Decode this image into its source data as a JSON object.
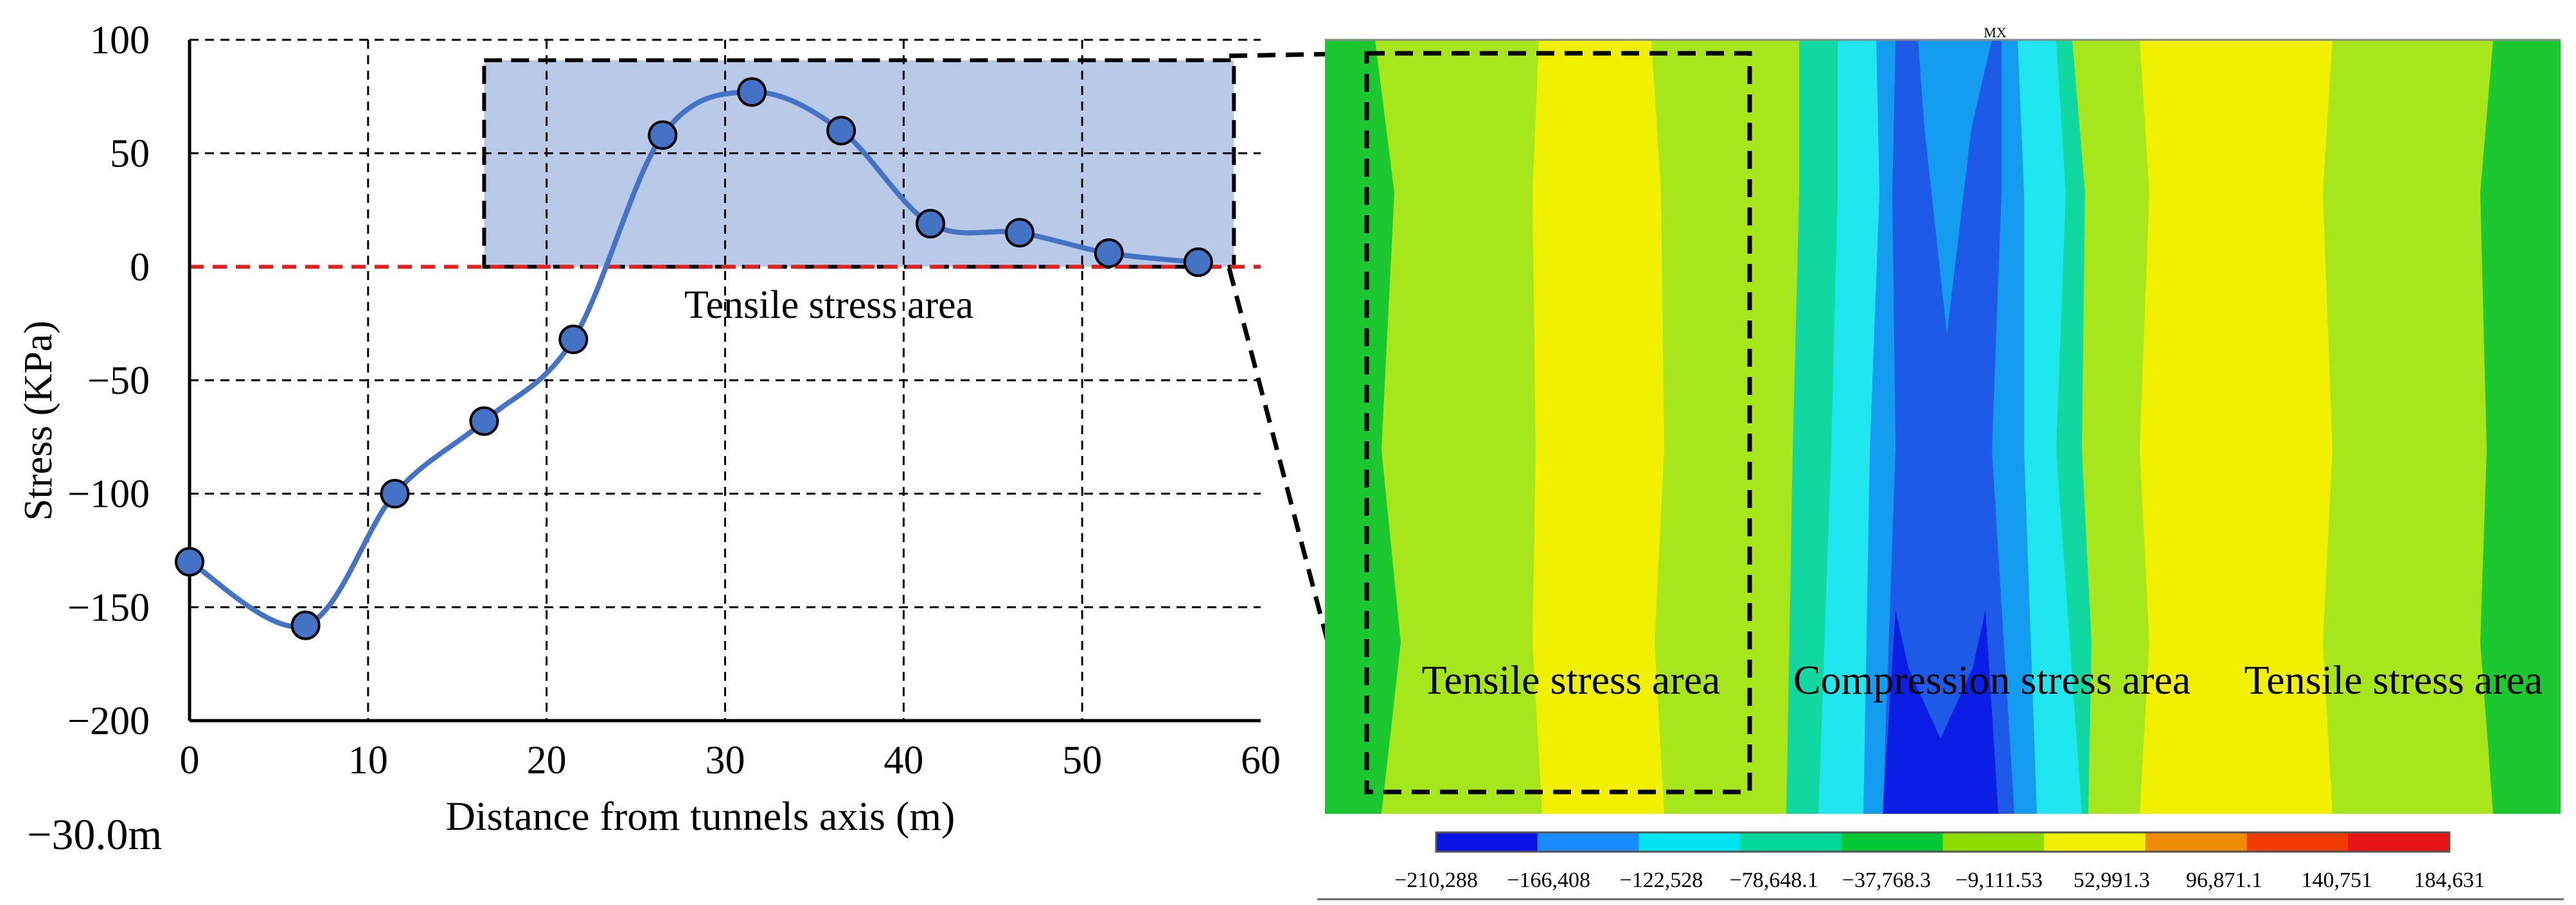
{
  "chart_data": [
    {
      "type": "line",
      "title": "",
      "xlabel": "Distance from tunnels axis (m)",
      "ylabel": "Stress  (KPa)",
      "xlim": [
        0,
        60
      ],
      "ylim": [
        -200,
        100
      ],
      "x_ticks": [
        0,
        10,
        20,
        30,
        40,
        50,
        60
      ],
      "y_ticks": [
        100,
        50,
        0,
        -50,
        -100,
        -150,
        -200
      ],
      "grid": true,
      "series": [
        {
          "name": "Stress",
          "color": "#4472C4",
          "marker_color": "#4472C4",
          "x": [
            0,
            6.5,
            11.5,
            16.5,
            21.5,
            26.5,
            31.5,
            36.5,
            41.5,
            46.5,
            51.5,
            56.5
          ],
          "y": [
            -130,
            -158,
            -100,
            -68,
            -32,
            58,
            77,
            60,
            19,
            15,
            6,
            2
          ]
        }
      ],
      "zero_line_color": "#E02020",
      "highlight_region": {
        "label": "Tensile stress area",
        "x_range": [
          16.5,
          58.5
        ],
        "y_range": [
          0,
          91
        ],
        "fill": "#B9CAE8"
      },
      "annotation": "−30.0m"
    },
    {
      "type": "heatmap",
      "region_labels": [
        "Tensile stress area",
        "Compression stress area",
        "Tensile stress area"
      ],
      "model_marker": "MX",
      "colorbar": {
        "labels": [
          "−210,288",
          "−166,408",
          "−122,528",
          "−78,648.1",
          "−37,768.3",
          "−9,111.53",
          "52,991.3",
          "96,871.1",
          "140,751",
          "184,631"
        ],
        "colors": [
          "#0A14E6",
          "#1A8CFF",
          "#00E6F0",
          "#00D89A",
          "#00C832",
          "#8CDC00",
          "#F0F000",
          "#F08C00",
          "#F03C00",
          "#E61414"
        ]
      },
      "palette": {
        "green": "#1CC830",
        "lightgreen": "#A8E61C",
        "yellow": "#F0F000",
        "teal": "#10D8A0",
        "cyan": "#20E6F0",
        "lightblue": "#149CF0",
        "blue": "#1E5AE8",
        "deepblue": "#0A1EE6"
      }
    }
  ]
}
